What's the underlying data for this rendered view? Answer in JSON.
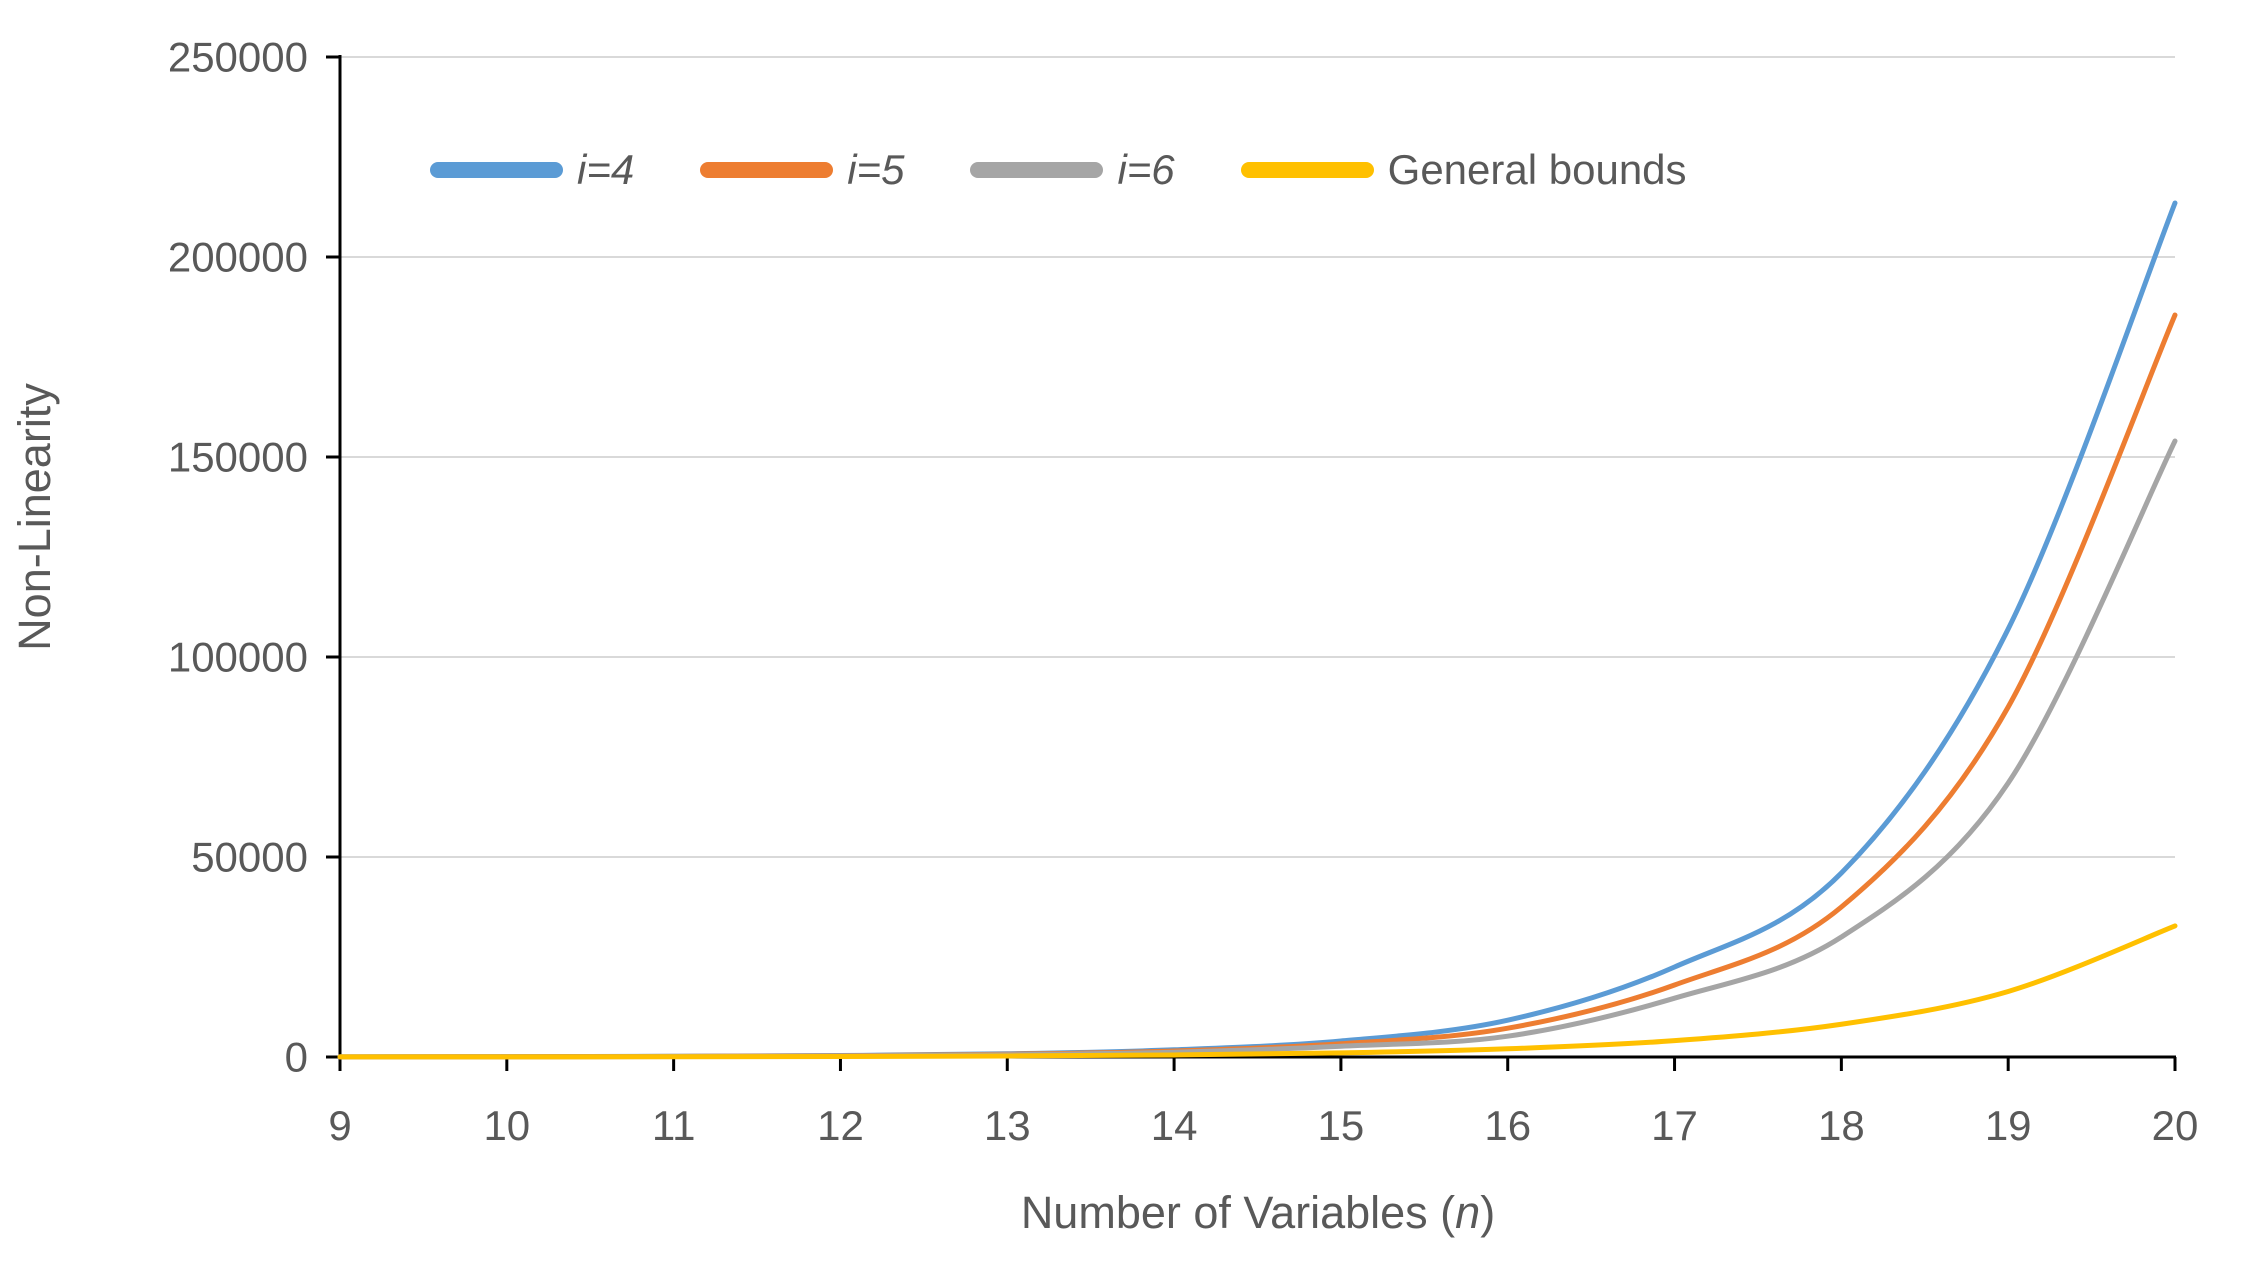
{
  "chart_data": {
    "type": "line",
    "title": "",
    "xlabel": "Number of Variables (n)",
    "xlabel_parts": {
      "prefix": "Number of Variables (",
      "var": "n",
      "suffix": ")"
    },
    "ylabel": "Non-Linearity",
    "x": [
      9,
      10,
      11,
      12,
      13,
      14,
      15,
      16,
      17,
      18,
      19,
      20
    ],
    "xlim": [
      9,
      20
    ],
    "ylim": [
      0,
      250000
    ],
    "y_ticks": [
      0,
      50000,
      100000,
      150000,
      200000,
      250000
    ],
    "grid": "horizontal",
    "legend_position": "top-inside",
    "background": "#FFFFFF",
    "gridline_color": "#D9D9D9",
    "axis_line_color": "#000000",
    "axis_text_color": "#595959",
    "series": [
      {
        "name": "i=4",
        "italic": true,
        "color": "#5B9BD5",
        "values": [
          40,
          85,
          180,
          380,
          800,
          1800,
          4000,
          9200,
          22500,
          46000,
          107000,
          213500
        ]
      },
      {
        "name": "i=5",
        "italic": true,
        "color": "#ED7D31",
        "values": [
          33,
          70,
          150,
          320,
          680,
          1500,
          3300,
          7200,
          18000,
          37500,
          87500,
          185500
        ]
      },
      {
        "name": "i=6",
        "italic": true,
        "color": "#A5A5A5",
        "values": [
          26,
          56,
          120,
          260,
          550,
          1200,
          2700,
          5200,
          14700,
          30000,
          68500,
          154000
        ]
      },
      {
        "name": "General bounds",
        "italic": false,
        "color": "#FFC000",
        "values": [
          16,
          32,
          64,
          128,
          256,
          512,
          1024,
          2048,
          4096,
          8192,
          16384,
          32768
        ]
      }
    ]
  }
}
